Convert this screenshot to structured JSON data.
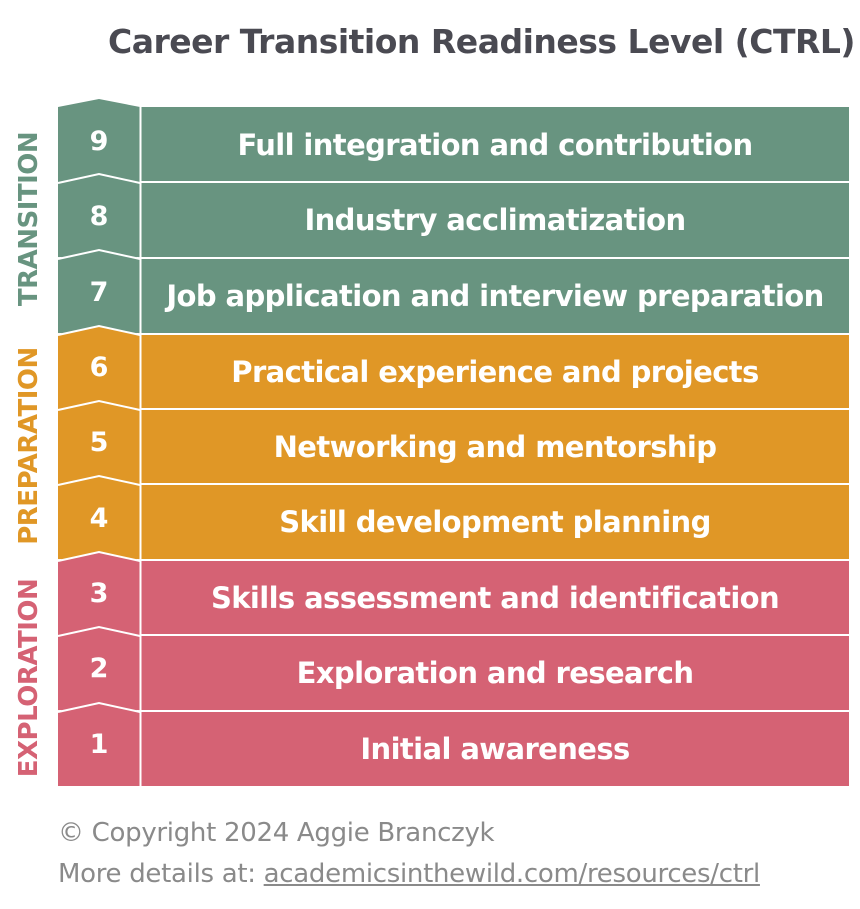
{
  "title": "Career Transition Readiness Level (CTRL)",
  "colors": {
    "transition": "#689480",
    "preparation": "#e09726",
    "exploration": "#d56274",
    "white": "#ffffff"
  },
  "phases": [
    {
      "label": "TRANSITION",
      "color": "#689480",
      "levels": [
        9,
        8,
        7
      ]
    },
    {
      "label": "PREPARATION",
      "color": "#e09726",
      "levels": [
        6,
        5,
        4
      ]
    },
    {
      "label": "EXPLORATION",
      "color": "#d56274",
      "levels": [
        3,
        2,
        1
      ]
    }
  ],
  "levels": [
    {
      "number": "9",
      "label": "Full integration and contribution",
      "phase": "TRANSITION"
    },
    {
      "number": "8",
      "label": "Industry acclimatization",
      "phase": "TRANSITION"
    },
    {
      "number": "7",
      "label": "Job application and interview preparation",
      "phase": "TRANSITION"
    },
    {
      "number": "6",
      "label": "Practical experience and projects",
      "phase": "PREPARATION"
    },
    {
      "number": "5",
      "label": "Networking and mentorship",
      "phase": "PREPARATION"
    },
    {
      "number": "4",
      "label": "Skill development planning",
      "phase": "PREPARATION"
    },
    {
      "number": "3",
      "label": "Skills assessment and identification",
      "phase": "EXPLORATION"
    },
    {
      "number": "2",
      "label": "Exploration and research",
      "phase": "EXPLORATION"
    },
    {
      "number": "1",
      "label": "Initial awareness",
      "phase": "EXPLORATION"
    }
  ],
  "footer": {
    "copyright": "© Copyright 2024 Aggie Branczyk",
    "details_prefix": "More details at: ",
    "details_link": "academicsinthewild.com/resources/ctrl"
  }
}
